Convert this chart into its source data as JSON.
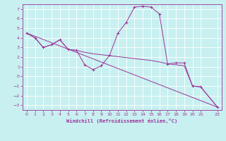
{
  "title": "",
  "xlabel": "Windchill (Refroidissement éolien,°C)",
  "ylabel": "",
  "bg_color": "#c8f0f0",
  "line_color": "#993399",
  "grid_color": "#ffffff",
  "xlim": [
    -0.5,
    23.5
  ],
  "ylim": [
    -3.5,
    7.5
  ],
  "xticks": [
    0,
    1,
    2,
    3,
    4,
    5,
    6,
    7,
    8,
    9,
    10,
    11,
    12,
    13,
    14,
    15,
    16,
    17,
    18,
    19,
    20,
    21,
    23
  ],
  "yticks": [
    -3,
    -2,
    -1,
    0,
    1,
    2,
    3,
    4,
    5,
    6,
    7
  ],
  "series1": [
    [
      0,
      4.5
    ],
    [
      1,
      4.0
    ],
    [
      2,
      3.0
    ],
    [
      3,
      3.3
    ],
    [
      4,
      3.8
    ],
    [
      5,
      2.8
    ],
    [
      6,
      2.7
    ],
    [
      7,
      1.2
    ],
    [
      8,
      0.7
    ],
    [
      9,
      1.1
    ],
    [
      10,
      2.2
    ],
    [
      11,
      4.5
    ],
    [
      12,
      5.6
    ],
    [
      13,
      7.2
    ],
    [
      14,
      7.3
    ],
    [
      15,
      7.2
    ],
    [
      16,
      6.5
    ],
    [
      17,
      1.3
    ],
    [
      18,
      1.4
    ],
    [
      19,
      1.4
    ],
    [
      20,
      -1.0
    ],
    [
      21,
      -1.1
    ],
    [
      23,
      -3.2
    ]
  ],
  "series2": [
    [
      0,
      4.5
    ],
    [
      23,
      -3.2
    ]
  ],
  "series3": [
    [
      0,
      4.5
    ],
    [
      1,
      4.0
    ],
    [
      2,
      3.0
    ],
    [
      3,
      3.3
    ],
    [
      4,
      3.8
    ],
    [
      5,
      2.8
    ],
    [
      6,
      2.7
    ],
    [
      7,
      2.5
    ],
    [
      8,
      2.35
    ],
    [
      9,
      2.25
    ],
    [
      10,
      2.15
    ],
    [
      11,
      2.05
    ],
    [
      12,
      1.95
    ],
    [
      13,
      1.85
    ],
    [
      14,
      1.75
    ],
    [
      15,
      1.65
    ],
    [
      16,
      1.5
    ],
    [
      17,
      1.3
    ],
    [
      18,
      1.2
    ],
    [
      19,
      1.1
    ],
    [
      20,
      -1.0
    ],
    [
      21,
      -1.1
    ],
    [
      23,
      -3.2
    ]
  ]
}
